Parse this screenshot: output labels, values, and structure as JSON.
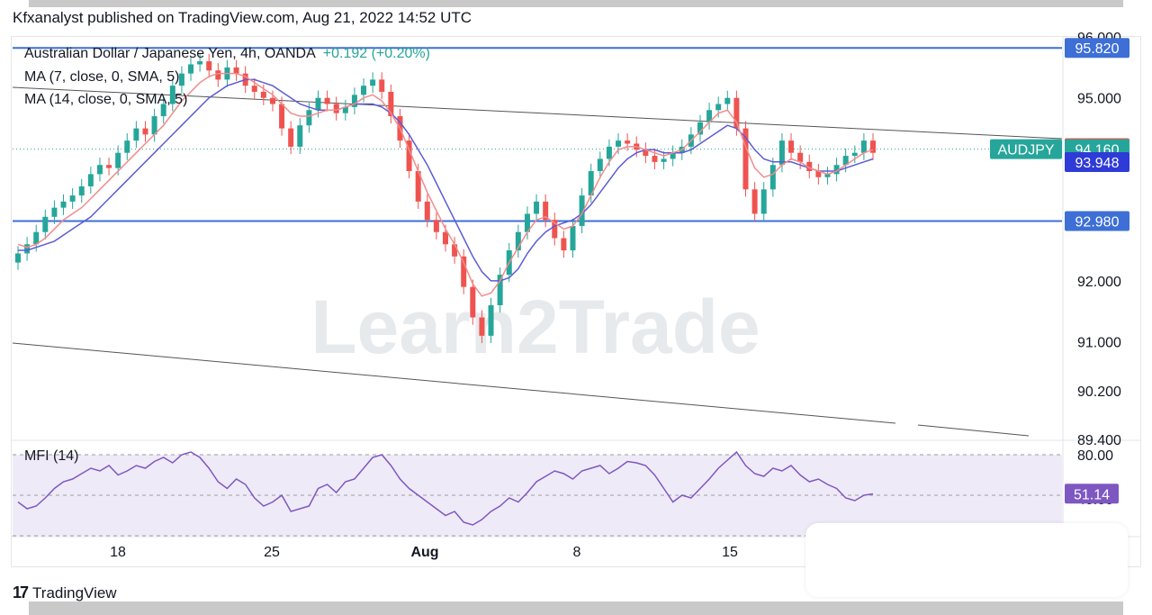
{
  "header": {
    "text": "Kfxanalyst published on TradingView.com, Aug 21, 2022 14:52 UTC"
  },
  "legend": {
    "title": "Australian Dollar / Japanese Yen, 4h, OANDA",
    "change": "+0.192 (+0.20%)",
    "ma7": "MA (7, close, 0, SMA, 5)",
    "ma14": "MA (14, close, 0, SMA, 5)"
  },
  "watermark": "Learn2Trade",
  "footer": {
    "brand": "TradingView",
    "logo": "17"
  },
  "colors": {
    "up": "#26a69a",
    "down": "#ef5350",
    "ma7": "#f28b8b",
    "ma14": "#5b5bd6",
    "hline": "#3d6fd6",
    "mfi": "#7e57c2",
    "mfi_fill": "#efeaf7"
  },
  "chart_data": [
    {
      "type": "candlestick",
      "symbol": "AUDJPY",
      "currency": "JPY",
      "x_ticks": [
        "18",
        "25",
        "Aug",
        "8",
        "15"
      ],
      "y_ticks": [
        96.0,
        95.0,
        92.0,
        91.0,
        90.2,
        89.4
      ],
      "y_tick_labels": [
        "96.000",
        "95.000",
        "92.000",
        "91.000",
        "90.200",
        "89.400"
      ],
      "ylim": [
        89.4,
        96.0
      ],
      "price_labels": [
        {
          "value": "95.820",
          "color": "#3d6fd6"
        },
        {
          "value": "94.177",
          "color": "#ef5350"
        },
        {
          "value": "94.160",
          "color": "#26a69a",
          "tag": "AUDJPY"
        },
        {
          "value": "93.948",
          "color": "#2f3bd6"
        },
        {
          "value": "92.980",
          "color": "#3d6fd6"
        }
      ],
      "horizontal_lines": [
        95.82,
        92.98
      ],
      "current_price": 94.16,
      "closes": [
        92.45,
        92.6,
        92.8,
        93.05,
        93.2,
        93.3,
        93.4,
        93.55,
        93.75,
        93.9,
        93.85,
        94.1,
        94.3,
        94.5,
        94.4,
        94.7,
        94.9,
        95.2,
        95.4,
        95.55,
        95.6,
        95.45,
        95.3,
        95.5,
        95.4,
        95.2,
        95.1,
        95.0,
        94.9,
        94.5,
        94.2,
        94.55,
        94.8,
        95.0,
        94.9,
        94.75,
        94.85,
        95.05,
        95.2,
        95.3,
        95.1,
        94.7,
        94.3,
        93.8,
        93.3,
        93.0,
        92.8,
        92.6,
        92.4,
        91.9,
        91.4,
        91.1,
        91.6,
        92.1,
        92.5,
        92.8,
        93.1,
        93.3,
        93.0,
        92.7,
        92.5,
        92.9,
        93.4,
        93.8,
        94.0,
        94.2,
        94.3,
        94.25,
        94.15,
        94.05,
        93.95,
        94.0,
        94.1,
        94.2,
        94.4,
        94.6,
        94.8,
        94.9,
        95.0,
        94.5,
        93.5,
        93.1,
        93.5,
        93.9,
        94.3,
        94.1,
        93.95,
        93.8,
        93.7,
        93.75,
        93.9,
        94.05,
        94.1,
        94.3,
        94.1
      ],
      "ma7": [
        92.6,
        92.55,
        92.6,
        92.7,
        92.85,
        93.0,
        93.1,
        93.2,
        93.35,
        93.5,
        93.65,
        93.8,
        93.95,
        94.1,
        94.25,
        94.4,
        94.55,
        94.75,
        94.95,
        95.1,
        95.25,
        95.35,
        95.4,
        95.4,
        95.4,
        95.35,
        95.25,
        95.15,
        95.05,
        94.9,
        94.75,
        94.7,
        94.7,
        94.75,
        94.8,
        94.8,
        94.85,
        94.9,
        95.0,
        95.05,
        94.95,
        94.75,
        94.5,
        94.15,
        93.8,
        93.45,
        93.15,
        92.85,
        92.6,
        92.3,
        91.95,
        91.75,
        91.8,
        92.0,
        92.3,
        92.55,
        92.8,
        93.0,
        93.05,
        92.95,
        92.85,
        92.9,
        93.1,
        93.4,
        93.7,
        93.95,
        94.15,
        94.2,
        94.2,
        94.15,
        94.1,
        94.05,
        94.1,
        94.15,
        94.3,
        94.45,
        94.6,
        94.75,
        94.8,
        94.6,
        94.2,
        93.85,
        93.7,
        93.75,
        93.9,
        94.0,
        93.95,
        93.85,
        93.8,
        93.75,
        93.8,
        93.9,
        94.0,
        94.1,
        94.15
      ],
      "ma14": [
        92.5,
        92.5,
        92.55,
        92.6,
        92.65,
        92.75,
        92.85,
        92.95,
        93.05,
        93.2,
        93.35,
        93.5,
        93.65,
        93.8,
        93.95,
        94.1,
        94.25,
        94.4,
        94.55,
        94.7,
        94.85,
        95.0,
        95.1,
        95.2,
        95.25,
        95.3,
        95.3,
        95.25,
        95.2,
        95.1,
        95.0,
        94.9,
        94.85,
        94.8,
        94.8,
        94.8,
        94.85,
        94.9,
        94.9,
        94.9,
        94.85,
        94.75,
        94.6,
        94.4,
        94.15,
        93.9,
        93.6,
        93.3,
        93.0,
        92.7,
        92.4,
        92.15,
        92.0,
        92.0,
        92.05,
        92.2,
        92.45,
        92.65,
        92.8,
        92.9,
        92.95,
        93.0,
        93.1,
        93.25,
        93.45,
        93.65,
        93.85,
        94.0,
        94.1,
        94.15,
        94.15,
        94.1,
        94.1,
        94.1,
        94.15,
        94.25,
        94.35,
        94.45,
        94.55,
        94.5,
        94.35,
        94.15,
        94.0,
        93.95,
        93.95,
        93.95,
        93.9,
        93.85,
        93.8,
        93.8,
        93.8,
        93.85,
        93.9,
        93.95,
        94.0
      ]
    },
    {
      "type": "line",
      "name": "MFI (14)",
      "ylim": [
        20,
        90
      ],
      "y_tick_labels": [
        "80.00",
        "40.00"
      ],
      "band": [
        20,
        80
      ],
      "current_value": "51.14",
      "values": [
        45,
        40,
        42,
        48,
        55,
        60,
        62,
        66,
        70,
        68,
        72,
        65,
        68,
        72,
        70,
        75,
        78,
        74,
        80,
        82,
        78,
        70,
        60,
        55,
        62,
        58,
        48,
        42,
        45,
        50,
        38,
        40,
        42,
        55,
        58,
        52,
        60,
        62,
        70,
        78,
        80,
        72,
        62,
        55,
        50,
        45,
        40,
        35,
        38,
        30,
        28,
        32,
        38,
        42,
        48,
        45,
        52,
        60,
        64,
        68,
        66,
        62,
        68,
        70,
        72,
        66,
        70,
        75,
        74,
        72,
        65,
        55,
        45,
        50,
        48,
        55,
        62,
        70,
        76,
        82,
        72,
        66,
        64,
        70,
        68,
        72,
        65,
        60,
        62,
        58,
        55,
        48,
        46,
        50,
        51
      ]
    }
  ]
}
